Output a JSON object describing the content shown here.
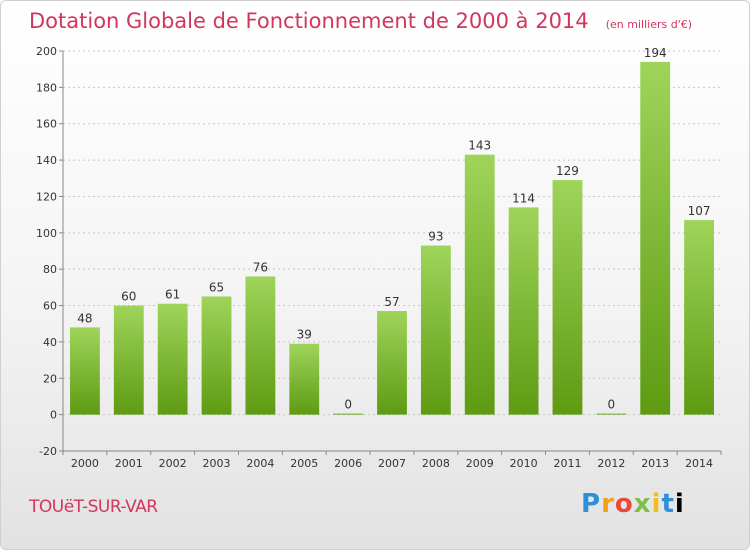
{
  "header": {
    "title": "Dotation Globale de Fonctionnement de 2000 à 2014",
    "subtitle": "(en milliers d'€)"
  },
  "footer": {
    "city": "TOUëT-SUR-VAR",
    "logo_letters": [
      "P",
      "r",
      "o",
      "x",
      "i",
      "t",
      "i"
    ]
  },
  "colors": {
    "accent": "#d2365c",
    "bar_top": "#9fd45a",
    "bar_bottom": "#5e9b12"
  },
  "chart_data": {
    "type": "bar",
    "title": "Dotation Globale de Fonctionnement de 2000 à 2014",
    "xlabel": "",
    "ylabel": "",
    "ylim": [
      -20,
      200
    ],
    "yticks": [
      -20,
      0,
      20,
      40,
      60,
      80,
      100,
      120,
      140,
      160,
      180,
      200
    ],
    "grid": true,
    "categories": [
      "2000",
      "2001",
      "2002",
      "2003",
      "2004",
      "2005",
      "2006",
      "2007",
      "2008",
      "2009",
      "2010",
      "2011",
      "2012",
      "2013",
      "2014"
    ],
    "values": [
      48,
      60,
      61,
      65,
      76,
      39,
      0,
      57,
      93,
      143,
      114,
      129,
      0,
      194,
      107
    ]
  }
}
